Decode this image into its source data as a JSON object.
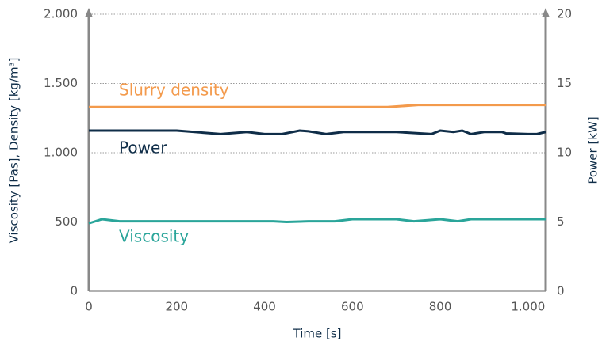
{
  "chart_data": {
    "type": "line",
    "ylabel": "Viscosity [Pas], Density [kg/m³]",
    "y2label": "Power [kW]",
    "xlabel": "Time [s]",
    "xlim": [
      0,
      1040
    ],
    "xticks": [
      0,
      200,
      400,
      600,
      800,
      {
        "value": 1000,
        "label": "1.000"
      }
    ],
    "ylim": [
      0,
      2000
    ],
    "yticks": [
      0,
      500,
      {
        "value": 1000,
        "label": "1.000"
      },
      {
        "value": 1500,
        "label": "1.500"
      },
      {
        "value": 2000,
        "label": "2.000"
      }
    ],
    "y2lim": [
      0,
      20
    ],
    "y2ticks": [
      0,
      5,
      10,
      15,
      20
    ],
    "grid": true,
    "series": [
      {
        "name": "Slurry density",
        "color": "#f39a4c",
        "x": [
          0,
          680,
          750,
          1040
        ],
        "values": [
          1330,
          1330,
          1345,
          1345
        ]
      },
      {
        "name": "Power",
        "color": "#0f2d48",
        "axis": "y2",
        "x": [
          0,
          200,
          300,
          360,
          400,
          440,
          480,
          500,
          540,
          580,
          700,
          780,
          800,
          830,
          850,
          870,
          900,
          940,
          950,
          1000,
          1020,
          1040
        ],
        "values": [
          11.6,
          11.6,
          11.35,
          11.5,
          11.35,
          11.35,
          11.6,
          11.55,
          11.35,
          11.5,
          11.5,
          11.35,
          11.6,
          11.5,
          11.6,
          11.35,
          11.5,
          11.5,
          11.4,
          11.35,
          11.35,
          11.5
        ]
      },
      {
        "name": "Viscosity",
        "color": "#2aa59a",
        "x": [
          0,
          30,
          70,
          100,
          420,
          450,
          500,
          560,
          600,
          700,
          740,
          800,
          840,
          870,
          1040
        ],
        "values": [
          490,
          520,
          505,
          505,
          505,
          500,
          505,
          505,
          520,
          520,
          505,
          520,
          505,
          520,
          520
        ]
      }
    ]
  }
}
